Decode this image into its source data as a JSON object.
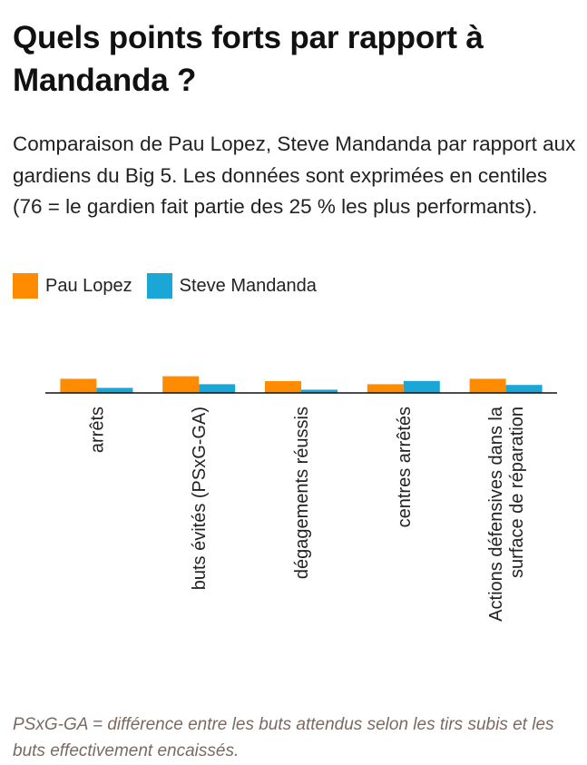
{
  "header": {
    "title": "Quels points forts par rapport à Mandanda ?",
    "subtitle": "Comparaison de Pau Lopez, Steve Mandanda par rapport aux gardiens du Big 5. Les données sont exprimées en centiles (76 = le gardien fait partie des 25 % les plus performants)."
  },
  "colors": {
    "pau_lopez": "#FF8C00",
    "steve_mandanda": "#1AA6D6"
  },
  "legend": [
    {
      "label": "Pau Lopez",
      "color": "#FF8C00"
    },
    {
      "label": "Steve Mandanda",
      "color": "#1AA6D6"
    }
  ],
  "chart_data": {
    "type": "bar",
    "categories": [
      [
        "arrêts"
      ],
      [
        "buts évités (PSxG-GA)"
      ],
      [
        "dégagements réussis"
      ],
      [
        "centres arrêtés"
      ],
      [
        "Actions défensives dans la",
        "surface de réparation"
      ]
    ],
    "series": [
      {
        "name": "Pau Lopez",
        "color": "#FF8C00",
        "values": [
          78,
          92,
          65,
          48,
          78
        ]
      },
      {
        "name": "Steve Mandanda",
        "color": "#1AA6D6",
        "values": [
          28,
          48,
          18,
          66,
          44
        ]
      }
    ],
    "ylim": [
      0,
      100
    ],
    "grid": false,
    "legend_position": "top-left"
  },
  "footnote": "PSxG-GA = différence entre les buts attendus selon les tirs subis et les buts effectivement encaissés."
}
